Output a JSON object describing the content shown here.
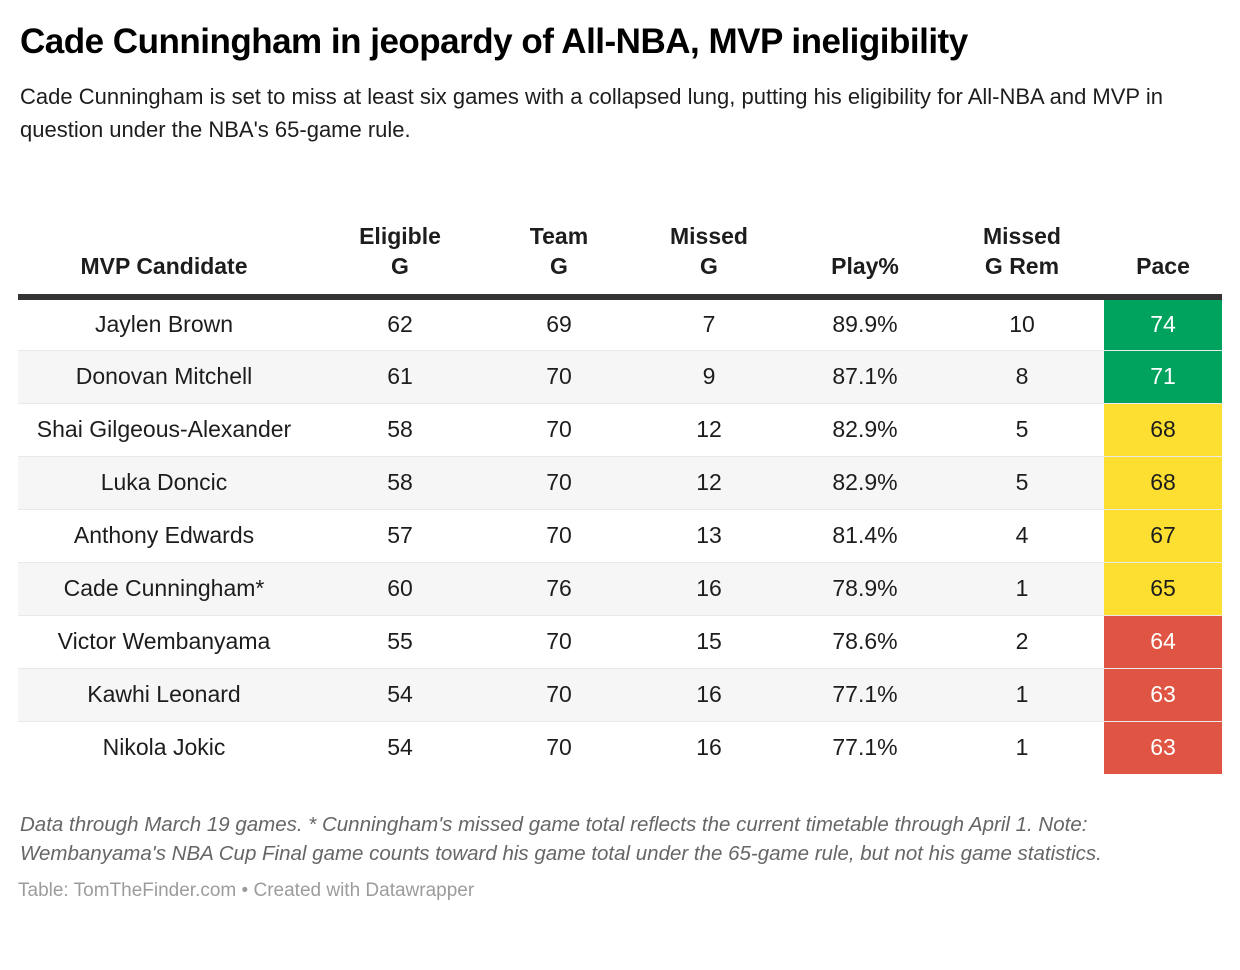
{
  "header": {
    "title": "Cade Cunningham in jeopardy of All-NBA, MVP ineligibility",
    "subtitle": "Cade Cunningham is set to miss at least six games with a collapsed lung, putting his eligibility for All-NBA and MVP in question under the NBA's 65-game rule."
  },
  "table": {
    "columns": [
      {
        "key": "candidate",
        "label": "MVP Candidate"
      },
      {
        "key": "eligible_g",
        "label": "Eligible\nG"
      },
      {
        "key": "team_g",
        "label": "Team\nG"
      },
      {
        "key": "missed_g",
        "label": "Missed\nG"
      },
      {
        "key": "play_pct",
        "label": "Play%"
      },
      {
        "key": "missed_g_rem",
        "label": "Missed\nG Rem"
      },
      {
        "key": "pace",
        "label": "Pace"
      }
    ],
    "rows": [
      {
        "candidate": "Jaylen Brown",
        "eligible_g": "62",
        "team_g": "69",
        "missed_g": "7",
        "play_pct": "89.9%",
        "missed_g_rem": "10",
        "pace": "74",
        "pace_color": "green"
      },
      {
        "candidate": "Donovan Mitchell",
        "eligible_g": "61",
        "team_g": "70",
        "missed_g": "9",
        "play_pct": "87.1%",
        "missed_g_rem": "8",
        "pace": "71",
        "pace_color": "green"
      },
      {
        "candidate": "Shai Gilgeous-Alexander",
        "eligible_g": "58",
        "team_g": "70",
        "missed_g": "12",
        "play_pct": "82.9%",
        "missed_g_rem": "5",
        "pace": "68",
        "pace_color": "yellow"
      },
      {
        "candidate": "Luka Doncic",
        "eligible_g": "58",
        "team_g": "70",
        "missed_g": "12",
        "play_pct": "82.9%",
        "missed_g_rem": "5",
        "pace": "68",
        "pace_color": "yellow"
      },
      {
        "candidate": "Anthony Edwards",
        "eligible_g": "57",
        "team_g": "70",
        "missed_g": "13",
        "play_pct": "81.4%",
        "missed_g_rem": "4",
        "pace": "67",
        "pace_color": "yellow"
      },
      {
        "candidate": "Cade Cunningham*",
        "eligible_g": "60",
        "team_g": "76",
        "missed_g": "16",
        "play_pct": "78.9%",
        "missed_g_rem": "1",
        "pace": "65",
        "pace_color": "yellow"
      },
      {
        "candidate": "Victor Wembanyama",
        "eligible_g": "55",
        "team_g": "70",
        "missed_g": "15",
        "play_pct": "78.6%",
        "missed_g_rem": "2",
        "pace": "64",
        "pace_color": "red"
      },
      {
        "candidate": "Kawhi Leonard",
        "eligible_g": "54",
        "team_g": "70",
        "missed_g": "16",
        "play_pct": "77.1%",
        "missed_g_rem": "1",
        "pace": "63",
        "pace_color": "red"
      },
      {
        "candidate": "Nikola Jokic",
        "eligible_g": "54",
        "team_g": "70",
        "missed_g": "16",
        "play_pct": "77.1%",
        "missed_g_rem": "1",
        "pace": "63",
        "pace_color": "red"
      }
    ]
  },
  "colors": {
    "green": "#00a35e",
    "yellow": "#fcdf30",
    "red": "#df5442",
    "text_on_green": "#ffffff",
    "text_on_yellow": "#1d1d1d",
    "text_on_red": "#ffffff",
    "header_border": "#333333"
  },
  "footer": {
    "notes": "Data through March 19 games. * Cunningham's missed game total reflects the current timetable through April 1. Note: Wembanyama's NBA Cup Final game counts toward his game total under the 65-game rule, but not his game statistics.",
    "caption_prefix": "Table: ",
    "source": "TomTheFinder.com",
    "separator": " • ",
    "credit": "Created with Datawrapper"
  },
  "chart_data": {
    "type": "table",
    "title": "Cade Cunningham in jeopardy of All-NBA, MVP ineligibility",
    "subtitle": "Cade Cunningham is set to miss at least six games with a collapsed lung, putting his eligibility for All-NBA and MVP in question under the NBA's 65-game rule.",
    "columns": [
      "MVP Candidate",
      "Eligible G",
      "Team G",
      "Missed G",
      "Play%",
      "Missed G Rem",
      "Pace"
    ],
    "rows": [
      [
        "Jaylen Brown",
        62,
        69,
        7,
        "89.9%",
        10,
        74
      ],
      [
        "Donovan Mitchell",
        61,
        70,
        9,
        "87.1%",
        8,
        71
      ],
      [
        "Shai Gilgeous-Alexander",
        58,
        70,
        12,
        "82.9%",
        5,
        68
      ],
      [
        "Luka Doncic",
        58,
        70,
        12,
        "82.9%",
        5,
        68
      ],
      [
        "Anthony Edwards",
        57,
        70,
        13,
        "81.4%",
        4,
        67
      ],
      [
        "Cade Cunningham*",
        60,
        76,
        16,
        "78.9%",
        1,
        65
      ],
      [
        "Victor Wembanyama",
        55,
        70,
        15,
        "78.6%",
        2,
        64
      ],
      [
        "Kawhi Leonard",
        54,
        70,
        16,
        "77.1%",
        1,
        63
      ],
      [
        "Nikola Jokic",
        54,
        70,
        16,
        "77.1%",
        1,
        63
      ]
    ],
    "pace_cell_colors": [
      "green",
      "green",
      "yellow",
      "yellow",
      "yellow",
      "yellow",
      "red",
      "red",
      "red"
    ],
    "notes": "Data through March 19 games. * Cunningham's missed game total reflects the current timetable through April 1. Note: Wembanyama's NBA Cup Final game counts toward his game total under the 65-game rule, but not his game statistics.",
    "source": "TomTheFinder.com",
    "credit": "Created with Datawrapper"
  }
}
